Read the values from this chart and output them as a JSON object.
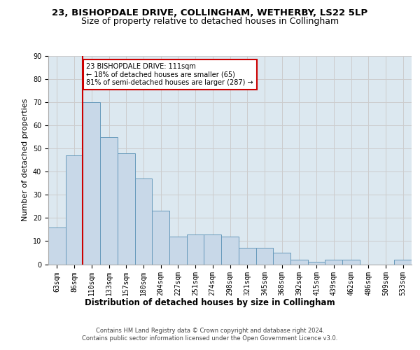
{
  "title1": "23, BISHOPDALE DRIVE, COLLINGHAM, WETHERBY, LS22 5LP",
  "title2": "Size of property relative to detached houses in Collingham",
  "xlabel": "Distribution of detached houses by size in Collingham",
  "ylabel": "Number of detached properties",
  "categories": [
    "63sqm",
    "86sqm",
    "110sqm",
    "133sqm",
    "157sqm",
    "180sqm",
    "204sqm",
    "227sqm",
    "251sqm",
    "274sqm",
    "298sqm",
    "321sqm",
    "345sqm",
    "368sqm",
    "392sqm",
    "415sqm",
    "439sqm",
    "462sqm",
    "486sqm",
    "509sqm",
    "533sqm"
  ],
  "values": [
    16,
    47,
    70,
    55,
    48,
    37,
    23,
    12,
    13,
    13,
    12,
    7,
    7,
    5,
    2,
    1,
    2,
    2,
    0,
    0,
    2
  ],
  "bar_color": "#c8d8e8",
  "bar_edge_color": "#6699bb",
  "annotation_text": "23 BISHOPDALE DRIVE: 111sqm\n← 18% of detached houses are smaller (65)\n81% of semi-detached houses are larger (287) →",
  "annotation_box_color": "#ffffff",
  "annotation_box_edge": "#cc0000",
  "vline_color": "#cc0000",
  "ylim": [
    0,
    90
  ],
  "yticks": [
    0,
    10,
    20,
    30,
    40,
    50,
    60,
    70,
    80,
    90
  ],
  "grid_color": "#cccccc",
  "bg_color": "#dce8f0",
  "footer1": "Contains HM Land Registry data © Crown copyright and database right 2024.",
  "footer2": "Contains public sector information licensed under the Open Government Licence v3.0.",
  "title_fontsize": 9.5,
  "subtitle_fontsize": 9,
  "tick_fontsize": 7,
  "axis_label_fontsize": 8.5,
  "ylabel_fontsize": 8,
  "footer_fontsize": 6
}
